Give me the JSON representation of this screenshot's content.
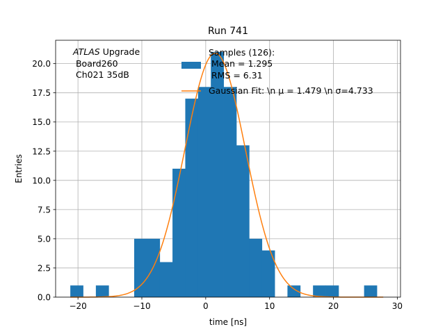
{
  "chart_data": {
    "type": "bar",
    "title": "Run 741",
    "xlabel": "time [ns]",
    "ylabel": "Entries",
    "xlim": [
      -23.5,
      30.5
    ],
    "ylim": [
      0,
      22
    ],
    "grid": true,
    "legend_position": "top-center",
    "x_ticks": [
      -20,
      -10,
      0,
      10,
      20,
      30
    ],
    "x_tick_labels": [
      "−20",
      "−10",
      "0",
      "10",
      "20",
      "30"
    ],
    "y_ticks": [
      0,
      2.5,
      5,
      7.5,
      10,
      12.5,
      15,
      17.5,
      20
    ],
    "y_tick_labels": [
      "0.0",
      "2.5",
      "5.0",
      "7.5",
      "10.0",
      "12.5",
      "15.0",
      "17.5",
      "20.0"
    ],
    "bin_width": 2,
    "histogram": {
      "name": "Samples (126):\n Mean = 1.295\n RMS = 6.31",
      "color": "#1f77b4",
      "bin_starts": [
        -21.2,
        -17.2,
        -11.2,
        -9.2,
        -7.2,
        -5.2,
        -3.2,
        -1.2,
        0.8,
        2.8,
        4.8,
        6.8,
        8.8,
        12.8,
        16.8,
        18.8,
        24.8
      ],
      "values": [
        1,
        1,
        5,
        5,
        3,
        11,
        17,
        18,
        21,
        18,
        13,
        5,
        4,
        1,
        1,
        1,
        1
      ]
    },
    "fit": {
      "name": "Gaussian Fit: \\n $\\mu$ = 1.479 \\n $\\sigma$=4.733",
      "color": "#ff7f0e",
      "mu": 1.479,
      "sigma": 4.733,
      "amplitude": 20.9,
      "x_range": [
        -21.2,
        27.8
      ]
    },
    "annotation": {
      "italic": "ATLAS",
      "line1": " Upgrade",
      "line2": " Board260",
      "line3": " Ch021 35dB"
    },
    "legend_entries": {
      "hist_lines": [
        "Samples (126):",
        " Mean = 1.295",
        " RMS = 6.31"
      ],
      "fit_line": "Gaussian Fit: \\n μ = 1.479 \\n σ=4.733"
    }
  }
}
